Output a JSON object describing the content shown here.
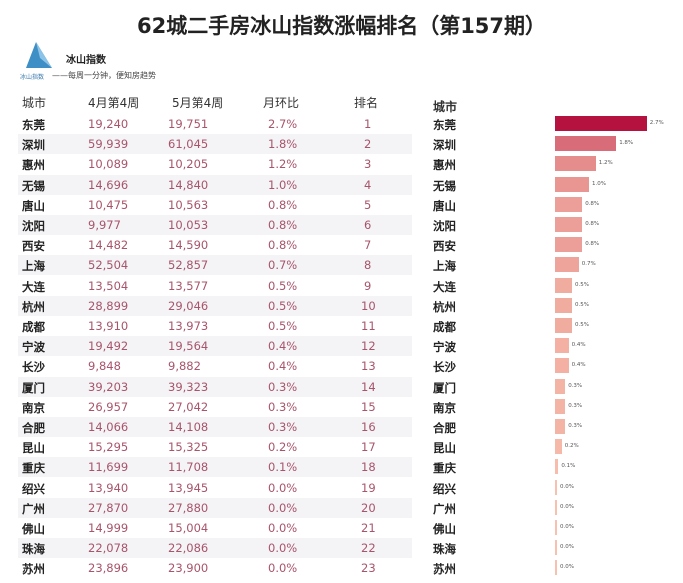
{
  "title": "62城二手房冰山指数涨幅排名（第157期）",
  "brand": {
    "name": "冰山指数",
    "slogan": "——每周一分钟，便知房趋势",
    "logo_text": "冰山指数"
  },
  "table": {
    "headers": [
      "城市",
      "4月第4周",
      "5月第4周",
      "月环比",
      "排名"
    ]
  },
  "chart_data": {
    "type": "bar",
    "orientation": "horizontal",
    "category_label": "城市",
    "categories": [
      "东莞",
      "深圳",
      "惠州",
      "无锡",
      "唐山",
      "沈阳",
      "西安",
      "上海",
      "大连",
      "杭州",
      "成都",
      "宁波",
      "长沙",
      "厦门",
      "南京",
      "合肥",
      "昆山",
      "重庆",
      "绍兴",
      "广州",
      "佛山",
      "珠海",
      "苏州"
    ],
    "apr_week4": [
      "19,240",
      "59,939",
      "10,089",
      "14,696",
      "10,475",
      "9,977",
      "14,482",
      "52,504",
      "13,504",
      "28,899",
      "13,910",
      "19,492",
      "9,848",
      "39,203",
      "26,957",
      "14,066",
      "15,295",
      "11,699",
      "13,940",
      "27,870",
      "14,999",
      "22,078",
      "23,896"
    ],
    "may_week4": [
      "19,751",
      "61,045",
      "10,205",
      "14,840",
      "10,563",
      "10,053",
      "14,590",
      "52,857",
      "13,577",
      "29,046",
      "13,973",
      "19,564",
      "9,882",
      "39,323",
      "27,042",
      "14,108",
      "15,325",
      "11,708",
      "13,945",
      "27,880",
      "15,004",
      "22,086",
      "23,900"
    ],
    "values": [
      2.7,
      1.8,
      1.2,
      1.0,
      0.8,
      0.8,
      0.8,
      0.7,
      0.5,
      0.5,
      0.5,
      0.4,
      0.4,
      0.3,
      0.3,
      0.3,
      0.2,
      0.1,
      0.0,
      0.0,
      0.0,
      0.0,
      0.0
    ],
    "labels": [
      "2.7%",
      "1.8%",
      "1.2%",
      "1.0%",
      "0.8%",
      "0.8%",
      "0.8%",
      "0.7%",
      "0.5%",
      "0.5%",
      "0.5%",
      "0.4%",
      "0.4%",
      "0.3%",
      "0.3%",
      "0.3%",
      "0.2%",
      "0.1%",
      "0.0%",
      "0.0%",
      "0.0%",
      "0.0%",
      "0.0%"
    ],
    "ranks": [
      "1",
      "2",
      "3",
      "4",
      "5",
      "6",
      "7",
      "8",
      "9",
      "10",
      "11",
      "12",
      "13",
      "14",
      "15",
      "16",
      "17",
      "18",
      "19",
      "20",
      "21",
      "22",
      "23"
    ],
    "colors": {
      "max": "#b5123f",
      "min": "#f9c0ad",
      "value_text": "#a8546b"
    }
  }
}
